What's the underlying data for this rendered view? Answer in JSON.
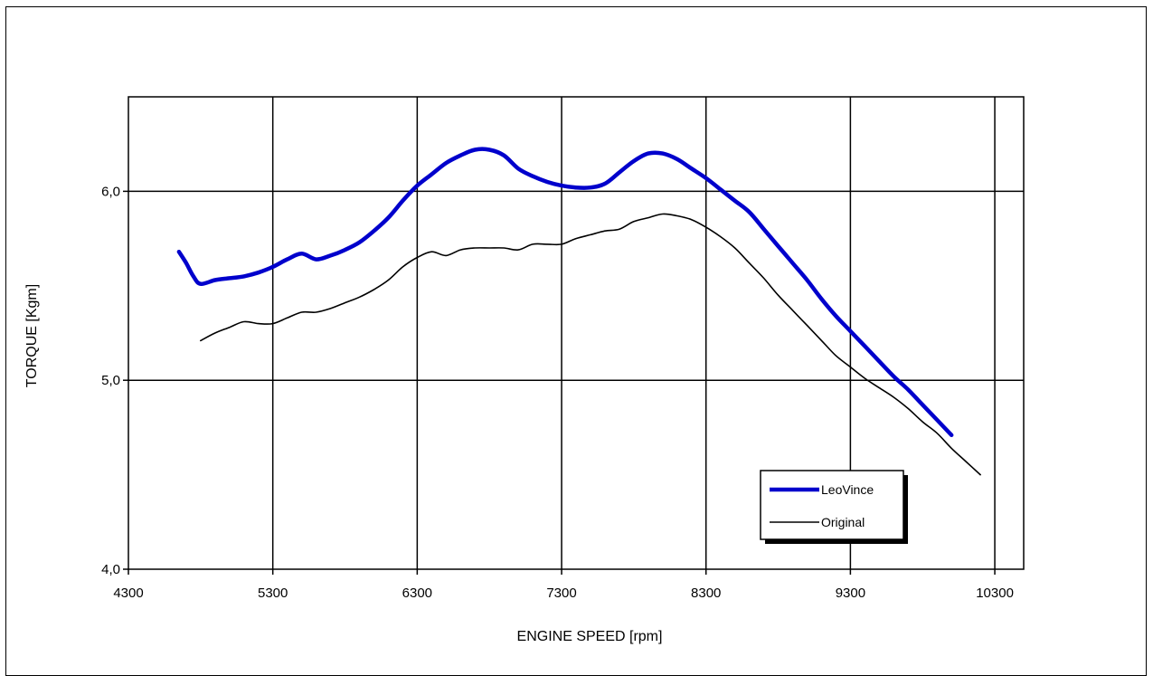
{
  "chart_data": {
    "type": "line",
    "title": "",
    "xlabel": "ENGINE SPEED [rpm]",
    "ylabel": "TORQUE [Kgm]",
    "xlim": [
      4300,
      10500
    ],
    "ylim": [
      4.0,
      6.5
    ],
    "x_ticks": [
      4300,
      5300,
      6300,
      7300,
      8300,
      9300,
      10300
    ],
    "x_tick_labels": [
      "4300",
      "5300",
      "6300",
      "7300",
      "8300",
      "9300",
      "10300"
    ],
    "y_ticks": [
      4.0,
      5.0,
      6.0
    ],
    "y_tick_labels": [
      "4,0",
      "5,0",
      "6,0"
    ],
    "grid": true,
    "legend_position": "bottom-right",
    "series": [
      {
        "name": "LeoVince",
        "color": "#0000cc",
        "x": [
          4650,
          4700,
          4750,
          4800,
          4900,
          5000,
          5100,
          5200,
          5300,
          5400,
          5500,
          5600,
          5700,
          5800,
          5900,
          6000,
          6100,
          6200,
          6300,
          6400,
          6500,
          6600,
          6700,
          6800,
          6900,
          7000,
          7100,
          7200,
          7300,
          7400,
          7500,
          7600,
          7700,
          7800,
          7900,
          8000,
          8100,
          8200,
          8300,
          8400,
          8500,
          8600,
          8700,
          8800,
          8900,
          9000,
          9100,
          9200,
          9300,
          9400,
          9500,
          9600,
          9700,
          9800,
          9900,
          10000
        ],
        "y": [
          5.68,
          5.62,
          5.55,
          5.51,
          5.53,
          5.54,
          5.55,
          5.57,
          5.6,
          5.64,
          5.67,
          5.64,
          5.66,
          5.69,
          5.73,
          5.79,
          5.86,
          5.95,
          6.03,
          6.09,
          6.15,
          6.19,
          6.22,
          6.22,
          6.19,
          6.12,
          6.08,
          6.05,
          6.03,
          6.02,
          6.02,
          6.04,
          6.1,
          6.16,
          6.2,
          6.2,
          6.17,
          6.12,
          6.07,
          6.01,
          5.95,
          5.89,
          5.8,
          5.71,
          5.62,
          5.53,
          5.43,
          5.34,
          5.26,
          5.18,
          5.1,
          5.02,
          4.95,
          4.87,
          4.79,
          4.71
        ]
      },
      {
        "name": "Original",
        "color": "#000000",
        "x": [
          4800,
          4900,
          5000,
          5100,
          5200,
          5300,
          5400,
          5500,
          5600,
          5700,
          5800,
          5900,
          6000,
          6100,
          6200,
          6300,
          6400,
          6500,
          6600,
          6700,
          6800,
          6900,
          7000,
          7100,
          7200,
          7300,
          7400,
          7500,
          7600,
          7700,
          7800,
          7900,
          8000,
          8100,
          8200,
          8300,
          8400,
          8500,
          8600,
          8700,
          8800,
          8900,
          9000,
          9100,
          9200,
          9300,
          9400,
          9500,
          9600,
          9700,
          9800,
          9900,
          10000,
          10100,
          10200
        ],
        "y": [
          5.21,
          5.25,
          5.28,
          5.31,
          5.3,
          5.3,
          5.33,
          5.36,
          5.36,
          5.38,
          5.41,
          5.44,
          5.48,
          5.53,
          5.6,
          5.65,
          5.68,
          5.66,
          5.69,
          5.7,
          5.7,
          5.7,
          5.69,
          5.72,
          5.72,
          5.72,
          5.75,
          5.77,
          5.79,
          5.8,
          5.84,
          5.86,
          5.88,
          5.87,
          5.85,
          5.81,
          5.76,
          5.7,
          5.62,
          5.54,
          5.45,
          5.37,
          5.29,
          5.21,
          5.13,
          5.07,
          5.01,
          4.96,
          4.91,
          4.85,
          4.78,
          4.72,
          4.64,
          4.57,
          4.5
        ]
      }
    ]
  }
}
